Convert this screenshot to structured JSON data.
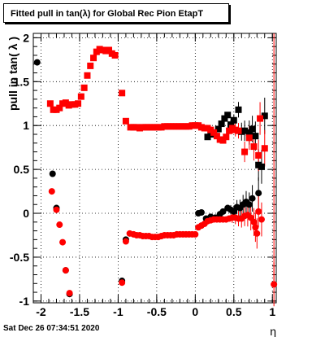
{
  "chart_data": {
    "type": "scatter",
    "title": "Fitted pull in tan(λ) for Global Rec Pion EtapT",
    "xlabel": "η",
    "ylabel": "pull in tan( λ )",
    "xlim": [
      -2.1,
      1.05
    ],
    "ylim": [
      -1.02,
      2.05
    ],
    "grid": true,
    "x_ticks": [
      -2,
      -1.5,
      -1,
      -0.5,
      0,
      0.5,
      1
    ],
    "x_tick_labels": [
      "-2",
      "-1.5",
      "-1",
      "-0.5",
      "0",
      "0.5",
      "1"
    ],
    "y_ticks": [
      -1,
      -0.5,
      0,
      0.5,
      1,
      1.5,
      2
    ],
    "y_tick_labels": [
      "-1",
      "-0.5",
      "0",
      "0.5",
      "1",
      "1.5",
      "2"
    ],
    "series": [
      {
        "marker": "square",
        "color": "#000000",
        "points": [
          {
            "x": 0.16,
            "y": 0.87
          },
          {
            "x": 0.2,
            "y": 0.9
          },
          {
            "x": 0.24,
            "y": 0.92
          },
          {
            "x": 0.3,
            "y": 0.96
          },
          {
            "x": 0.34,
            "y": 1.02
          },
          {
            "x": 0.38,
            "y": 1.08
          },
          {
            "x": 0.42,
            "y": 1.12
          },
          {
            "x": 0.46,
            "y": 1.01
          },
          {
            "x": 0.5,
            "y": 1.06
          },
          {
            "x": 0.56,
            "y": 1.18
          },
          {
            "x": 0.6,
            "y": 0.93
          },
          {
            "x": 0.64,
            "y": 0.94
          },
          {
            "x": 0.7,
            "y": 0.92
          },
          {
            "x": 0.74,
            "y": 0.96
          },
          {
            "x": 0.78,
            "y": 0.88
          },
          {
            "x": 0.82,
            "y": 0.55
          },
          {
            "x": 0.86,
            "y": 0.53
          },
          {
            "x": 0.9,
            "y": 1.11
          }
        ]
      },
      {
        "marker": "circle",
        "color": "#000000",
        "points": [
          {
            "x": -2.05,
            "y": 1.72
          },
          {
            "x": -1.85,
            "y": 0.45
          },
          {
            "x": -1.8,
            "y": 0.06
          },
          {
            "x": -1.68,
            "y": -0.65
          },
          {
            "x": -1.63,
            "y": -0.92
          },
          {
            "x": -0.95,
            "y": -0.77
          },
          {
            "x": -0.9,
            "y": -0.3
          },
          {
            "x": 0.04,
            "y": 0.0
          },
          {
            "x": 0.08,
            "y": 0.01
          },
          {
            "x": 0.14,
            "y": -0.06
          },
          {
            "x": 0.2,
            "y": -0.04
          },
          {
            "x": 0.26,
            "y": -0.05
          },
          {
            "x": 0.32,
            "y": -0.01
          },
          {
            "x": 0.36,
            "y": 0.02
          },
          {
            "x": 0.42,
            "y": 0.06
          },
          {
            "x": 0.46,
            "y": 0.04
          },
          {
            "x": 0.5,
            "y": 0.02
          },
          {
            "x": 0.54,
            "y": 0.07
          },
          {
            "x": 0.58,
            "y": 0.06
          },
          {
            "x": 0.62,
            "y": 0.1
          },
          {
            "x": 0.66,
            "y": 0.13
          },
          {
            "x": 0.7,
            "y": 0.1
          },
          {
            "x": 0.74,
            "y": 0.17
          },
          {
            "x": 0.82,
            "y": 0.23
          }
        ]
      },
      {
        "marker": "square",
        "color": "#ff0000",
        "points": [
          {
            "x": -1.88,
            "y": 1.25
          },
          {
            "x": -1.84,
            "y": 1.18
          },
          {
            "x": -1.8,
            "y": 1.18
          },
          {
            "x": -1.76,
            "y": 1.2
          },
          {
            "x": -1.72,
            "y": 1.25
          },
          {
            "x": -1.68,
            "y": 1.26
          },
          {
            "x": -1.64,
            "y": 1.23
          },
          {
            "x": -1.6,
            "y": 1.24
          },
          {
            "x": -1.56,
            "y": 1.24
          },
          {
            "x": -1.52,
            "y": 1.25
          },
          {
            "x": -1.48,
            "y": 1.33
          },
          {
            "x": -1.44,
            "y": 1.43
          },
          {
            "x": -1.4,
            "y": 1.57
          },
          {
            "x": -1.36,
            "y": 1.68
          },
          {
            "x": -1.32,
            "y": 1.77
          },
          {
            "x": -1.28,
            "y": 1.84
          },
          {
            "x": -1.24,
            "y": 1.87
          },
          {
            "x": -1.2,
            "y": 1.86
          },
          {
            "x": -1.16,
            "y": 1.85
          },
          {
            "x": -1.12,
            "y": 1.86
          },
          {
            "x": -1.08,
            "y": 1.82
          },
          {
            "x": -1.04,
            "y": 1.8
          },
          {
            "x": -0.95,
            "y": 1.37
          },
          {
            "x": -0.9,
            "y": 1.05
          },
          {
            "x": -0.84,
            "y": 0.98
          },
          {
            "x": -0.8,
            "y": 0.98
          },
          {
            "x": -0.76,
            "y": 0.98
          },
          {
            "x": -0.72,
            "y": 0.97
          },
          {
            "x": -0.68,
            "y": 0.98
          },
          {
            "x": -0.64,
            "y": 0.98
          },
          {
            "x": -0.6,
            "y": 0.98
          },
          {
            "x": -0.56,
            "y": 0.98
          },
          {
            "x": -0.52,
            "y": 0.98
          },
          {
            "x": -0.48,
            "y": 0.98
          },
          {
            "x": -0.44,
            "y": 0.98
          },
          {
            "x": -0.4,
            "y": 0.99
          },
          {
            "x": -0.36,
            "y": 0.99
          },
          {
            "x": -0.32,
            "y": 0.99
          },
          {
            "x": -0.28,
            "y": 0.99
          },
          {
            "x": -0.24,
            "y": 0.99
          },
          {
            "x": -0.2,
            "y": 0.99
          },
          {
            "x": -0.16,
            "y": 0.99
          },
          {
            "x": -0.12,
            "y": 0.99
          },
          {
            "x": -0.08,
            "y": 0.99
          },
          {
            "x": -0.04,
            "y": 1.0
          },
          {
            "x": 0.0,
            "y": 1.0
          },
          {
            "x": 0.04,
            "y": 1.0
          },
          {
            "x": 0.08,
            "y": 0.98
          },
          {
            "x": 0.12,
            "y": 0.97
          },
          {
            "x": 0.16,
            "y": 0.97
          },
          {
            "x": 0.2,
            "y": 0.95
          },
          {
            "x": 0.24,
            "y": 0.92
          },
          {
            "x": 0.28,
            "y": 0.88
          },
          {
            "x": 0.32,
            "y": 0.84
          },
          {
            "x": 0.36,
            "y": 0.83
          },
          {
            "x": 0.4,
            "y": 0.87
          },
          {
            "x": 0.44,
            "y": 0.94
          },
          {
            "x": 0.48,
            "y": 0.97
          },
          {
            "x": 0.52,
            "y": 0.95
          },
          {
            "x": 0.56,
            "y": 0.94
          },
          {
            "x": 0.64,
            "y": 0.7
          },
          {
            "x": 0.7,
            "y": 0.86
          },
          {
            "x": 0.76,
            "y": 0.76
          },
          {
            "x": 0.82,
            "y": 0.66
          },
          {
            "x": 0.84,
            "y": 1.08
          },
          {
            "x": 0.9,
            "y": 0.74
          }
        ]
      },
      {
        "marker": "circle",
        "color": "#ff0000",
        "points": [
          {
            "x": -1.86,
            "y": 0.25
          },
          {
            "x": -1.8,
            "y": 0.04
          },
          {
            "x": -1.76,
            "y": -0.13
          },
          {
            "x": -1.72,
            "y": -0.33
          },
          {
            "x": -1.68,
            "y": -0.65
          },
          {
            "x": -1.63,
            "y": -0.91
          },
          {
            "x": -0.95,
            "y": -0.79
          },
          {
            "x": -0.9,
            "y": -0.32
          },
          {
            "x": -0.85,
            "y": -0.23
          },
          {
            "x": -0.8,
            "y": -0.24
          },
          {
            "x": -0.76,
            "y": -0.25
          },
          {
            "x": -0.72,
            "y": -0.25
          },
          {
            "x": -0.68,
            "y": -0.26
          },
          {
            "x": -0.64,
            "y": -0.26
          },
          {
            "x": -0.6,
            "y": -0.26
          },
          {
            "x": -0.56,
            "y": -0.27
          },
          {
            "x": -0.52,
            "y": -0.27
          },
          {
            "x": -0.48,
            "y": -0.27
          },
          {
            "x": -0.44,
            "y": -0.26
          },
          {
            "x": -0.4,
            "y": -0.25
          },
          {
            "x": -0.36,
            "y": -0.25
          },
          {
            "x": -0.32,
            "y": -0.25
          },
          {
            "x": -0.28,
            "y": -0.25
          },
          {
            "x": -0.24,
            "y": -0.24
          },
          {
            "x": -0.2,
            "y": -0.24
          },
          {
            "x": -0.16,
            "y": -0.24
          },
          {
            "x": -0.12,
            "y": -0.24
          },
          {
            "x": -0.08,
            "y": -0.24
          },
          {
            "x": -0.04,
            "y": -0.24
          },
          {
            "x": 0.0,
            "y": -0.24
          },
          {
            "x": 0.04,
            "y": -0.16
          },
          {
            "x": 0.08,
            "y": -0.14
          },
          {
            "x": 0.12,
            "y": -0.12
          },
          {
            "x": 0.16,
            "y": -0.09
          },
          {
            "x": 0.2,
            "y": -0.08
          },
          {
            "x": 0.24,
            "y": -0.07
          },
          {
            "x": 0.28,
            "y": -0.07
          },
          {
            "x": 0.32,
            "y": -0.07
          },
          {
            "x": 0.36,
            "y": -0.07
          },
          {
            "x": 0.4,
            "y": -0.07
          },
          {
            "x": 0.44,
            "y": -0.06
          },
          {
            "x": 0.48,
            "y": -0.05
          },
          {
            "x": 0.52,
            "y": -0.05
          },
          {
            "x": 0.56,
            "y": -0.06
          },
          {
            "x": 0.6,
            "y": -0.06
          },
          {
            "x": 0.64,
            "y": -0.03
          },
          {
            "x": 0.68,
            "y": -0.02
          },
          {
            "x": 0.72,
            "y": -0.05
          },
          {
            "x": 0.76,
            "y": -0.1
          },
          {
            "x": 0.78,
            "y": -0.16
          },
          {
            "x": 0.8,
            "y": -0.23
          },
          {
            "x": 0.82,
            "y": 0.02
          },
          {
            "x": 0.86,
            "y": -0.07
          },
          {
            "x": 1.02,
            "y": -0.81
          }
        ]
      }
    ]
  },
  "footer": "Sat Dec 26 07:34:51 2020",
  "colors": {
    "black": "#000000",
    "red": "#ff0000"
  }
}
